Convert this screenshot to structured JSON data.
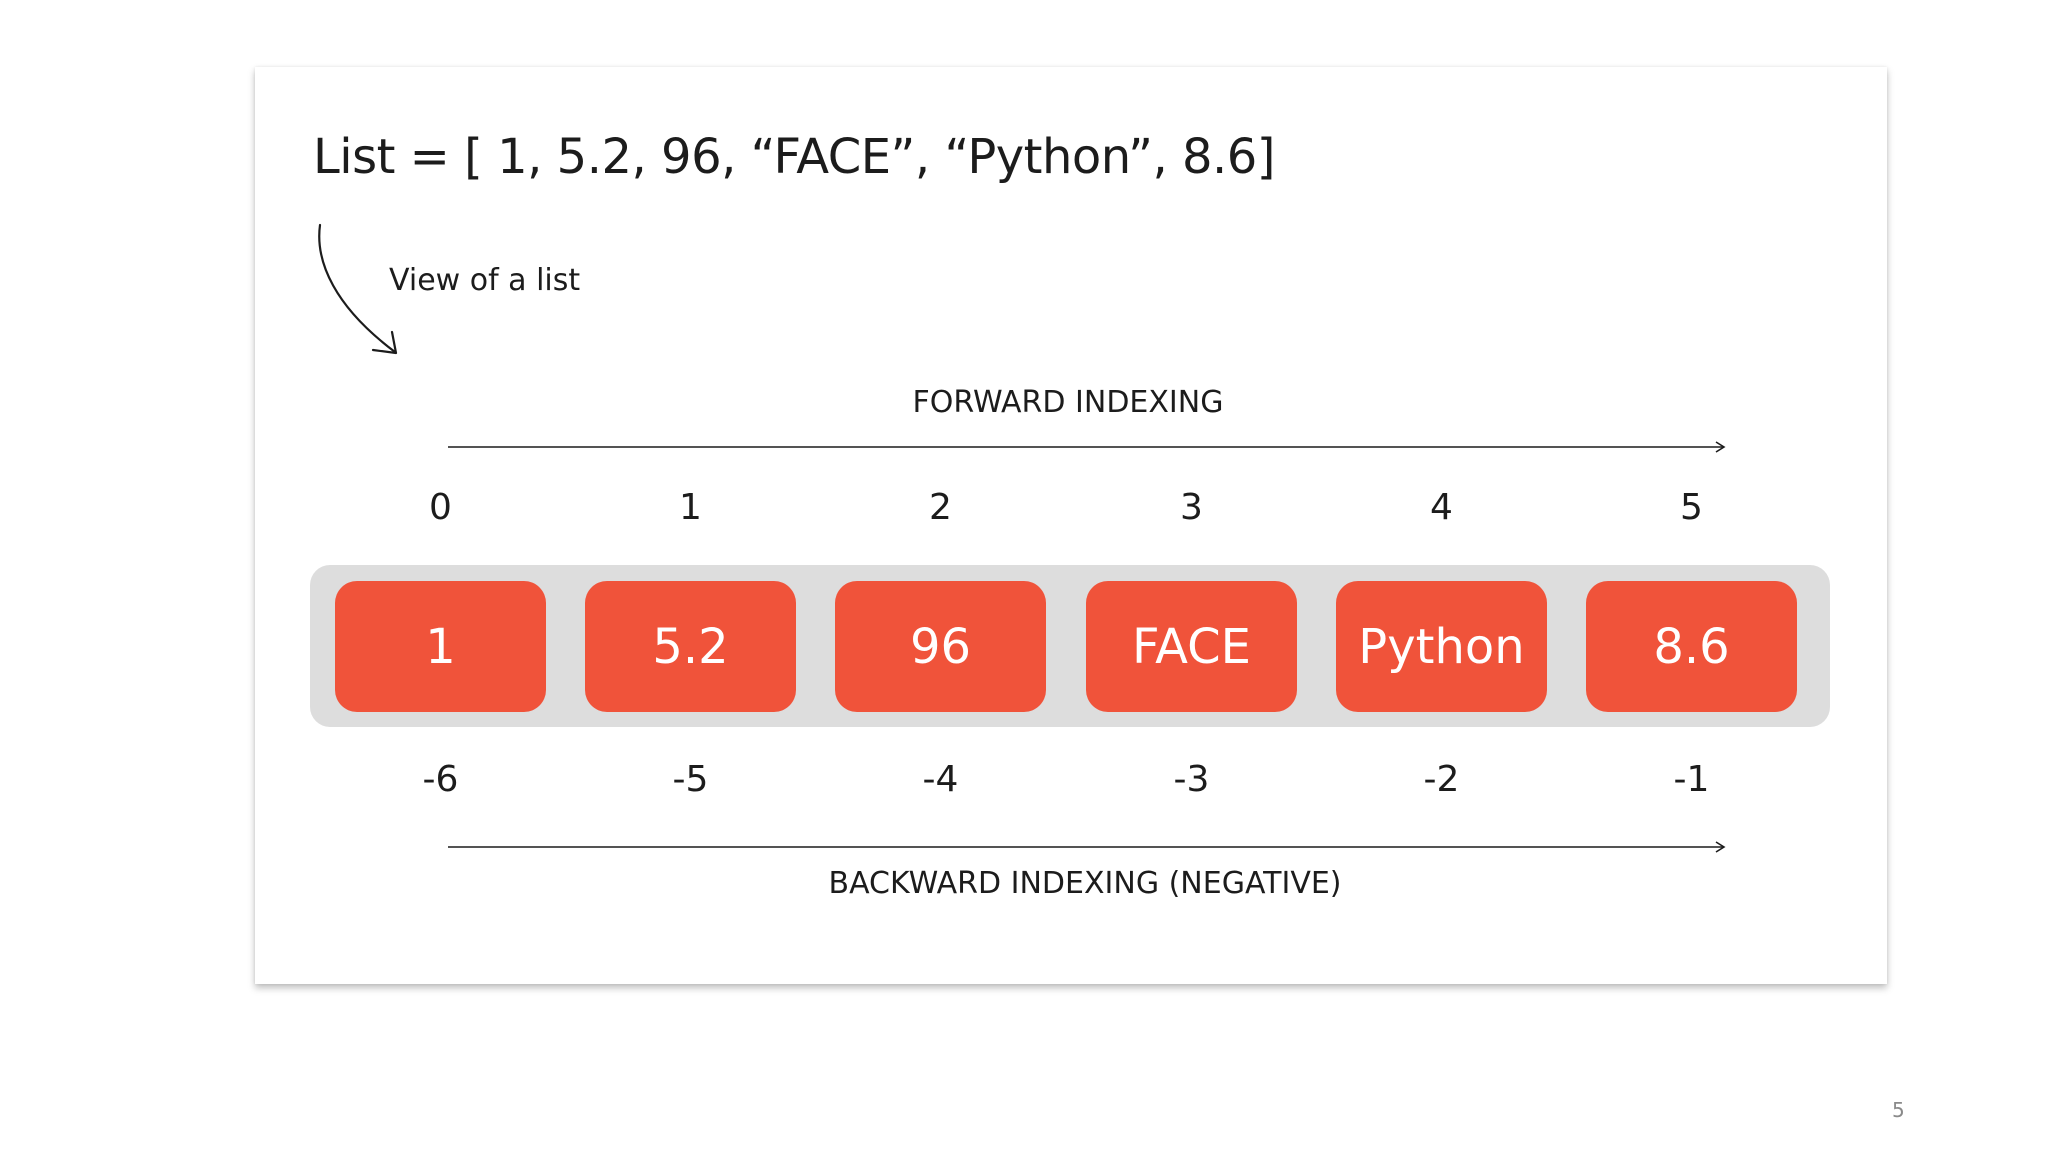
{
  "slide": {
    "code_line": "List = [ 1, 5.2, 96, “FACE”, “Python”, 8.6]",
    "annotation": "View of a list",
    "forward_label": "FORWARD INDEXING",
    "backward_label": "BACKWARD INDEXING (NEGATIVE)",
    "forward_indices": [
      "0",
      "1",
      "2",
      "3",
      "4",
      "5"
    ],
    "backward_indices": [
      "-6",
      "-5",
      "-4",
      "-3",
      "-2",
      "-1"
    ],
    "items": [
      "1",
      "5.2",
      "96",
      "FACE",
      "Python",
      "8.6"
    ]
  },
  "page_number": "5",
  "colors": {
    "cell_fill": "#f0533a",
    "tray_fill": "#dddddd",
    "text": "#1c1c1c"
  },
  "icons": {
    "annotation_arrow": "curved-arrow-icon",
    "axis_arrows": "right-arrow-icon"
  }
}
